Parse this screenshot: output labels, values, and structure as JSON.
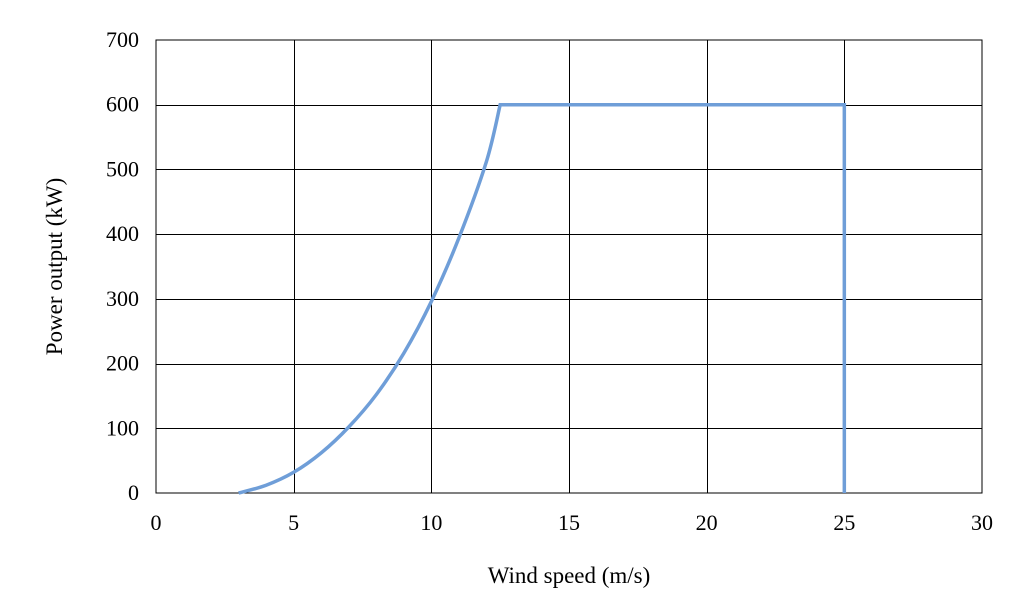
{
  "chart_data": {
    "type": "line",
    "title": "",
    "xlabel": "Wind speed (m/s)",
    "ylabel": "Power output (kW)",
    "xlim": [
      0,
      30
    ],
    "ylim": [
      0,
      700
    ],
    "xticks": [
      0,
      5,
      10,
      15,
      20,
      25,
      30
    ],
    "yticks": [
      0,
      100,
      200,
      300,
      400,
      500,
      600,
      700
    ],
    "xtick_labels": [
      "0",
      "5",
      "10",
      "15",
      "20",
      "25",
      "30"
    ],
    "ytick_labels": [
      "0",
      "100",
      "200",
      "300",
      "400",
      "500",
      "600",
      "700"
    ],
    "grid": true,
    "legend": "none",
    "series": [
      {
        "color": "#6F9ED8",
        "x": [
          3,
          4,
          5,
          6,
          7,
          8,
          9,
          10,
          11,
          12,
          12.5,
          15,
          20,
          25,
          25
        ],
        "y": [
          0,
          12,
          32,
          62,
          102,
          152,
          216,
          296,
          394,
          512,
          600,
          600,
          600,
          600,
          0
        ]
      }
    ]
  }
}
